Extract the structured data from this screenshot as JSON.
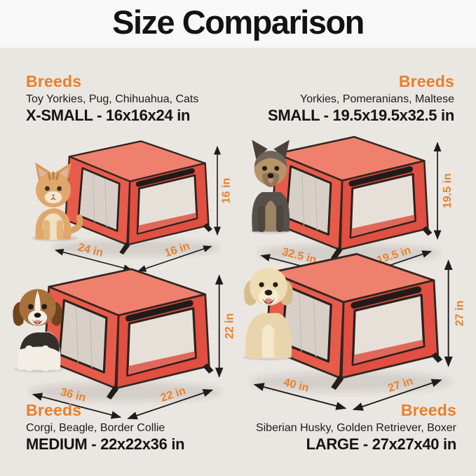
{
  "title": "Size Comparison",
  "colors": {
    "accent_orange": "#E8802C",
    "crate_red": "#E75B4B",
    "crate_top_red": "#F0806E",
    "background": "#EAE6E1",
    "header_background": "#F8F8F8",
    "text_dark": "#141414"
  },
  "sections": [
    {
      "id": "x-small",
      "breeds_heading": "Breeds",
      "breeds_list": "Toy Yorkies, Pug, Chihuahua, Cats",
      "size_label": "X-SMALL - 16x16x24 in",
      "pet_illustration": "kitten",
      "dimensions": {
        "height": "16 in",
        "length": "24 in",
        "depth": "16 in"
      }
    },
    {
      "id": "small",
      "breeds_heading": "Breeds",
      "breeds_list": "Yorkies, Pomeranians, Maltese",
      "size_label": "SMALL - 19.5x19.5x32.5 in",
      "pet_illustration": "yorkshire-terrier",
      "dimensions": {
        "height": "19.5 in",
        "length": "32.5 in",
        "depth": "19.5 in"
      }
    },
    {
      "id": "medium",
      "breeds_heading": "Breeds",
      "breeds_list": "Corgi, Beagle, Border Collie",
      "size_label": "MEDIUM - 22x22x36 in",
      "pet_illustration": "beagle",
      "dimensions": {
        "height": "22 in",
        "length": "36 in",
        "depth": "22 in"
      }
    },
    {
      "id": "large",
      "breeds_heading": "Breeds",
      "breeds_list": "Siberian Husky, Golden Retriever, Boxer",
      "size_label": "LARGE - 27x27x40 in",
      "pet_illustration": "golden-retriever",
      "dimensions": {
        "height": "27 in",
        "length": "40 in",
        "depth": "27 in"
      }
    }
  ]
}
